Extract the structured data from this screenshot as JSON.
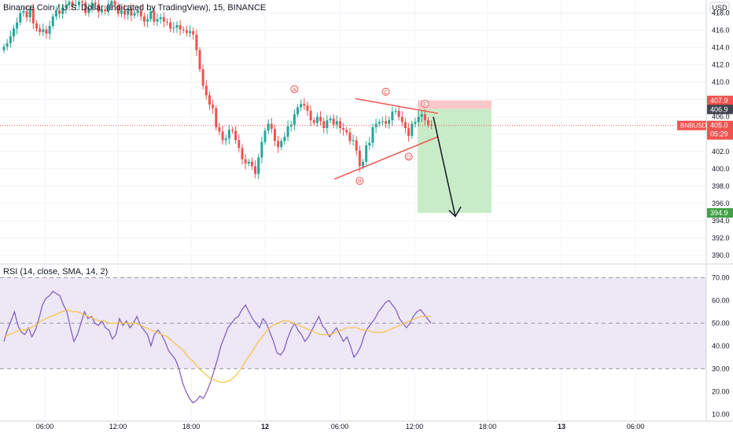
{
  "header": {
    "symbol_title": "Binance Coin / U.S. Dollar (Indicated by TradingView), 15, BINANCE",
    "currency": "USD"
  },
  "rsi_panel": {
    "label": "RSI (14, close, SMA, 14, 2)"
  },
  "colors": {
    "up": "#26a69a",
    "down": "#ef5350",
    "rsi_line": "#7e57c2",
    "rsi_ma": "#f5c342",
    "rsi_band": "#ede7f6",
    "profit_zone": "#c8ecc8",
    "stop_zone": "#f9c9c9"
  },
  "chart_data": [
    {
      "type": "candlestick",
      "price_axis": {
        "ticks": [
          418.0,
          416.0,
          414.0,
          412.0,
          410.0,
          408.0,
          406.0,
          404.0,
          402.0,
          400.0,
          398.0,
          396.0,
          394.0,
          392.0,
          390.0
        ],
        "range": [
          389.0,
          419.5
        ]
      },
      "time_axis": {
        "ticks": [
          "06:00",
          "12:00",
          "18:00",
          "12",
          "06:00",
          "12:00",
          "18:00",
          "13",
          "06:00"
        ]
      },
      "price_tags": [
        {
          "value": "407.9",
          "kind": "stop"
        },
        {
          "value": "406.9",
          "kind": "entry"
        },
        {
          "value": "405.0",
          "kind": "last"
        },
        {
          "value": "394.9",
          "kind": "target"
        }
      ],
      "last_price_label": "BNBUSD",
      "countdown": "05:29",
      "wave_labels": [
        "A",
        "B",
        "C",
        "D",
        "E"
      ],
      "trade": {
        "entry": 406.9,
        "stop": 407.9,
        "target": 394.9
      },
      "closes": [
        414.1,
        414.5,
        415.3,
        416.2,
        416.9,
        418.0,
        418.2,
        417.5,
        418.5,
        416.8,
        416.2,
        415.8,
        416.1,
        415.6,
        416.5,
        417.6,
        418.3,
        417.9,
        418.6,
        418.9,
        419.3,
        418.8,
        418.9,
        419.3,
        419.2,
        418.0,
        418.6,
        419.2,
        419.0,
        418.1,
        418.4,
        418.2,
        418.9,
        419.4,
        418.9,
        417.9,
        418.3,
        417.8,
        418.5,
        417.7,
        418.0,
        418.3,
        417.6,
        417.0,
        417.3,
        418.2,
        417.0,
        417.3,
        417.5,
        417.0,
        416.9,
        416.2,
        416.3,
        416.6,
        416.1,
        416.0,
        415.7,
        415.9,
        415.5,
        413.7,
        411.5,
        409.6,
        408.5,
        407.4,
        407.0,
        404.8,
        404.3,
        403.3,
        403.5,
        404.5,
        404.4,
        403.3,
        402.4,
        401.1,
        400.6,
        400.8,
        400.3,
        399.4,
        401.3,
        403.1,
        404.4,
        405.2,
        404.6,
        403.2,
        402.5,
        403.2,
        403.7,
        404.9,
        405.1,
        406.3,
        407.1,
        407.5,
        407.3,
        406.7,
        405.6,
        405.3,
        406.0,
        405.5,
        404.7,
        405.6,
        405.8,
        405.1,
        405.5,
        404.7,
        404.5,
        404.2,
        403.2,
        403.3,
        402.1,
        400.3,
        400.8,
        402.7,
        403.0,
        404.8,
        405.2,
        405.4,
        405.5,
        405.2,
        405.6,
        406.6,
        406.7,
        406.0,
        405.4,
        404.7,
        403.8,
        405.2,
        405.4,
        406.0,
        406.3,
        405.6,
        405.1,
        405.0
      ],
      "rsi": {
        "ticks": [
          70.0,
          60.0,
          50.0,
          40.0,
          30.0,
          20.0,
          10.0
        ],
        "bands": [
          70,
          50,
          30
        ],
        "values": [
          42,
          47,
          51,
          55,
          49,
          46,
          45,
          48,
          44,
          47,
          52,
          58,
          61,
          62,
          64,
          63,
          62,
          58,
          55,
          48,
          42,
          45,
          50,
          55,
          52,
          53,
          50,
          49,
          51,
          48,
          47,
          43,
          45,
          52,
          49,
          51,
          48,
          50,
          53,
          49,
          47,
          45,
          40,
          45,
          47,
          45,
          42,
          38,
          36,
          34,
          30,
          24,
          20,
          17,
          15,
          16,
          18,
          17,
          20,
          24,
          29,
          34,
          40,
          44,
          48,
          50,
          52,
          53,
          56,
          58,
          55,
          52,
          50,
          48,
          52,
          50,
          46,
          42,
          37,
          36,
          38,
          43,
          47,
          50,
          47,
          45,
          42,
          44,
          47,
          50,
          53,
          49,
          47,
          44,
          46,
          48,
          45,
          42,
          44,
          40,
          35,
          37,
          40,
          45,
          48,
          50,
          52,
          55,
          57,
          59,
          60,
          58,
          56,
          52,
          50,
          48,
          50,
          53,
          55,
          56,
          54,
          52,
          50
        ],
        "ma_values": [
          44,
          45,
          46,
          47,
          47,
          48,
          49,
          51,
          52,
          53,
          54,
          55,
          56,
          55,
          55,
          54,
          53,
          52,
          51,
          51,
          50,
          50,
          50,
          50,
          50,
          50,
          49,
          48,
          47,
          46,
          45,
          44,
          42,
          40,
          38,
          35,
          33,
          30,
          28,
          26,
          25,
          24,
          24,
          25,
          27,
          30,
          34,
          37,
          41,
          44,
          47,
          49,
          50,
          51,
          51,
          50,
          49,
          48,
          47,
          46,
          45,
          45,
          45,
          46,
          47,
          48,
          48,
          48,
          47,
          47,
          46,
          46,
          46,
          47,
          48,
          49,
          50,
          51,
          52,
          53,
          53,
          53
        ]
      }
    }
  ]
}
